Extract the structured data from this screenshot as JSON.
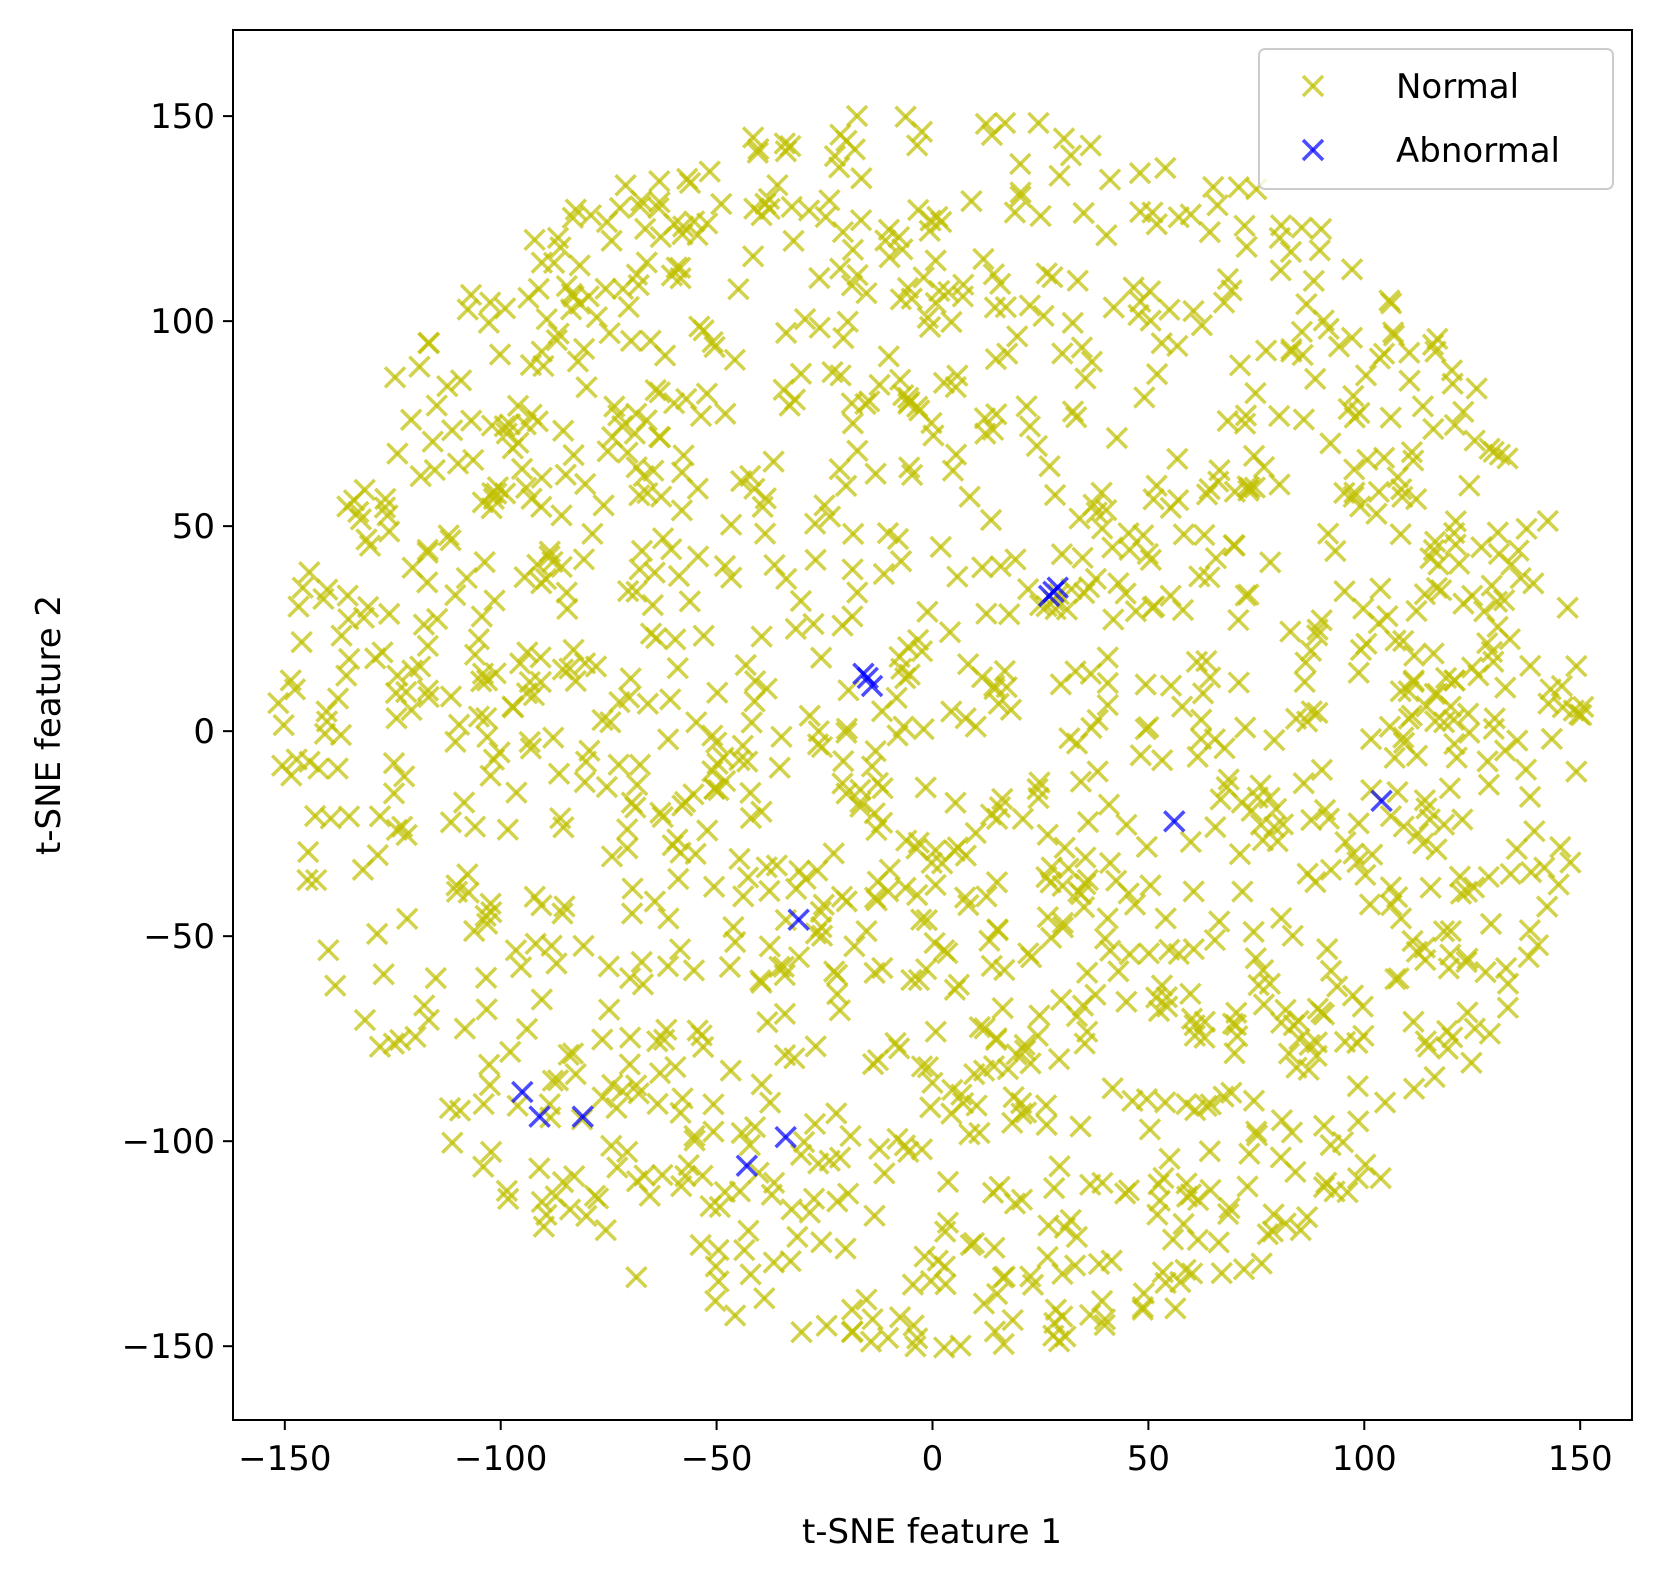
{
  "chart_data": {
    "type": "scatter",
    "xlabel": "t-SNE feature 1",
    "ylabel": "t-SNE feature 2",
    "xlim": [
      -162,
      162
    ],
    "ylim": [
      -168,
      171
    ],
    "xticks": [
      -150,
      -100,
      -50,
      0,
      50,
      100,
      150
    ],
    "yticks": [
      -150,
      -100,
      -50,
      0,
      50,
      100,
      150
    ],
    "xtick_labels": [
      "−150",
      "−100",
      "−50",
      "0",
      "50",
      "100",
      "150"
    ],
    "ytick_labels": [
      "−150",
      "−100",
      "−50",
      "0",
      "50",
      "100",
      "150"
    ],
    "grid": false,
    "legend_position": "top-right",
    "marker": "x",
    "series": [
      {
        "name": "Normal",
        "color": "#bfbf00",
        "alpha": 0.7,
        "count": 1500,
        "distribution": "uniform disk",
        "center": [
          0,
          0
        ],
        "radius": 152
      },
      {
        "name": "Abnormal",
        "color": "#0000ff",
        "alpha": 0.7,
        "points": [
          [
            28,
            34
          ],
          [
            27,
            33
          ],
          [
            29,
            35
          ],
          [
            -16,
            14
          ],
          [
            -14,
            11
          ],
          [
            -15,
            13
          ],
          [
            56,
            -22
          ],
          [
            104,
            -17
          ],
          [
            -31,
            -46
          ],
          [
            -95,
            -88
          ],
          [
            -91,
            -94
          ],
          [
            -81,
            -94
          ],
          [
            -43,
            -106
          ],
          [
            -34,
            -99
          ]
        ]
      }
    ]
  }
}
